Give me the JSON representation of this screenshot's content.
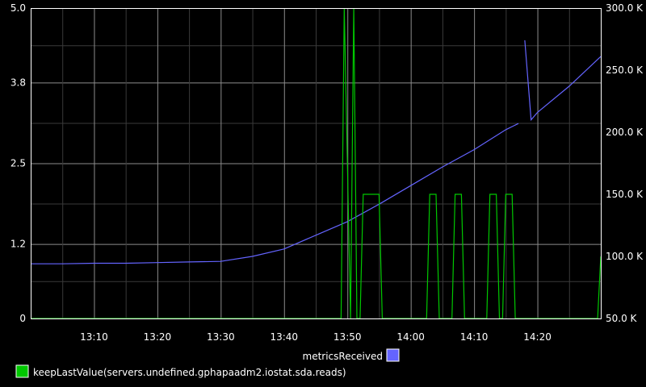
{
  "chart_data": {
    "type": "line",
    "title": "",
    "xlabel": "",
    "ylabel": "",
    "grid": true,
    "legend_position": "bottom",
    "x_ticks": [
      "13:10",
      "13:20",
      "13:30",
      "13:40",
      "13:50",
      "14:00",
      "14:10",
      "14:20"
    ],
    "x_range": [
      "13:00",
      "14:30"
    ],
    "y_left": {
      "ticks": [
        "0",
        "1.2",
        "2.5",
        "3.8",
        "5.0"
      ],
      "range": [
        0,
        5
      ]
    },
    "y_right": {
      "ticks": [
        "50.0 K",
        "100.0 K",
        "150.0 K",
        "200.0 K",
        "250.0 K",
        "300.0 K"
      ],
      "range": [
        50000,
        300000
      ]
    },
    "series": [
      {
        "name": "metricsReceived",
        "axis": "right",
        "color": "#6464ff",
        "points": [
          [
            "13:00",
            94000
          ],
          [
            "13:05",
            94000
          ],
          [
            "13:10",
            94500
          ],
          [
            "13:15",
            94500
          ],
          [
            "13:20",
            95000
          ],
          [
            "13:25",
            95500
          ],
          [
            "13:30",
            96000
          ],
          [
            "13:35",
            100000
          ],
          [
            "13:40",
            106000
          ],
          [
            "13:45",
            117000
          ],
          [
            "13:50",
            128000
          ],
          [
            "13:55",
            142000
          ],
          [
            "14:00",
            157000
          ],
          [
            "14:05",
            172000
          ],
          [
            "14:10",
            186000
          ],
          [
            "14:15",
            202000
          ],
          [
            "14:17",
            207000
          ],
          null,
          [
            "14:18",
            274000
          ],
          [
            "14:19",
            210000
          ],
          [
            "14:20",
            216000
          ],
          [
            "14:25",
            237000
          ],
          [
            "14:30",
            261000
          ]
        ]
      },
      {
        "name": "keepLastValue(servers.undefined.gphapaadm2.iostat.sda.reads)",
        "axis": "left",
        "color": "#00c800",
        "points": [
          [
            "13:00",
            0
          ],
          [
            "13:49",
            0
          ],
          [
            "13:49.5",
            5
          ],
          [
            "13:50.5",
            0
          ],
          [
            "13:51",
            5
          ],
          [
            "13:51.5",
            0
          ],
          [
            "13:52",
            0
          ],
          [
            "13:52.5",
            2
          ],
          [
            "13:55",
            2
          ],
          [
            "13:55.5",
            0
          ],
          [
            "14:02.5",
            0
          ],
          [
            "14:03",
            2
          ],
          [
            "14:04",
            2
          ],
          [
            "14:04.5",
            0
          ],
          [
            "14:06.5",
            0
          ],
          [
            "14:07",
            2
          ],
          [
            "14:08",
            2
          ],
          [
            "14:08.5",
            0
          ],
          [
            "14:12",
            0
          ],
          [
            "14:12.5",
            2
          ],
          [
            "14:13.5",
            2
          ],
          [
            "14:14",
            0
          ],
          [
            "14:14.5",
            0
          ],
          [
            "14:15",
            2
          ],
          [
            "14:16",
            2
          ],
          [
            "14:16.5",
            0
          ],
          [
            "14:29.5",
            0
          ],
          [
            "14:30",
            1
          ]
        ]
      }
    ]
  }
}
